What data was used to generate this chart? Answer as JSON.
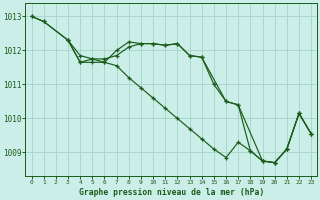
{
  "title": "Graphe pression niveau de la mer (hPa)",
  "background_color": "#cceee8",
  "grid_color": "#aad8cc",
  "line_color": "#1a5c1a",
  "xlim": [
    -0.5,
    23.5
  ],
  "ylim": [
    1008.3,
    1013.4
  ],
  "yticks": [
    1009,
    1010,
    1011,
    1012,
    1013
  ],
  "xticks": [
    0,
    1,
    2,
    3,
    4,
    5,
    6,
    7,
    8,
    9,
    10,
    11,
    12,
    13,
    14,
    15,
    16,
    17,
    18,
    19,
    20,
    21,
    22,
    23
  ],
  "series1_x": [
    0,
    1,
    3,
    4,
    5,
    6,
    7,
    8,
    9,
    10,
    11,
    12,
    13,
    14,
    15,
    16,
    17,
    18,
    19,
    20,
    21,
    22,
    23
  ],
  "series1_y": [
    1013.0,
    1012.85,
    1012.3,
    1011.85,
    1011.75,
    1011.75,
    1011.85,
    1012.1,
    1012.2,
    1012.2,
    1012.15,
    1012.2,
    1011.85,
    1011.8,
    1011.0,
    1010.5,
    1010.4,
    1009.05,
    1008.75,
    1008.7,
    1009.1,
    1010.15,
    1009.55
  ],
  "series2_x": [
    0,
    1,
    3,
    4,
    5,
    6,
    7,
    8,
    9,
    10,
    11,
    12,
    13,
    14,
    15,
    16,
    17,
    18,
    19,
    20,
    21,
    22,
    23
  ],
  "series2_y": [
    1013.0,
    1012.85,
    1012.3,
    1011.65,
    1011.65,
    1011.65,
    1011.55,
    1011.2,
    1010.9,
    1010.6,
    1010.3,
    1010.0,
    1009.7,
    1009.4,
    1009.1,
    1008.85,
    1009.3,
    1009.05,
    1008.75,
    1008.7,
    1009.1,
    1010.15,
    1009.55
  ],
  "series3_x": [
    3,
    4,
    5,
    6,
    7,
    8,
    9,
    10,
    11,
    12,
    13,
    14,
    16,
    17,
    19,
    20,
    21,
    22,
    23
  ],
  "series3_y": [
    1012.3,
    1011.65,
    1011.75,
    1011.65,
    1012.0,
    1012.25,
    1012.2,
    1012.2,
    1012.15,
    1012.2,
    1011.85,
    1011.8,
    1010.5,
    1010.4,
    1008.75,
    1008.7,
    1009.1,
    1010.15,
    1009.55
  ]
}
